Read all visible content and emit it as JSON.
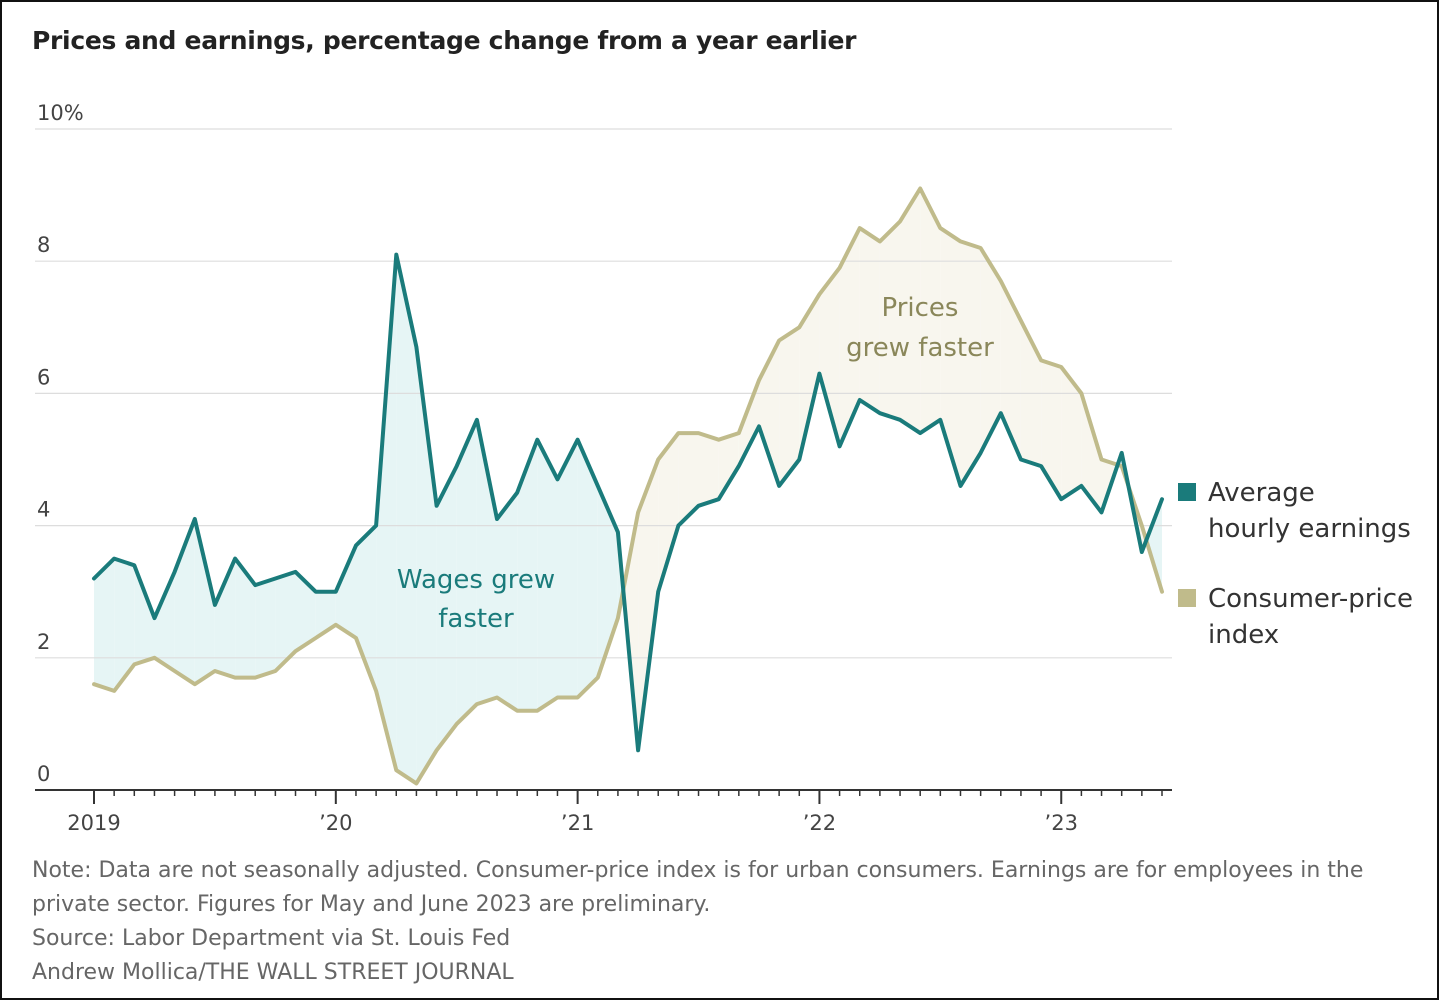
{
  "title": "Prices and earnings, percentage change from a year earlier",
  "colors": {
    "earnings": "#1a7b7b",
    "cpi": "#c0bb8b",
    "wage_fill": "#e6f5f5",
    "price_fill": "#f8f6ee",
    "grid": "#dddddd",
    "axis": "#333333"
  },
  "annotations": {
    "wages": [
      "Wages grew",
      "faster"
    ],
    "prices": [
      "Prices",
      "grew faster"
    ]
  },
  "legend": {
    "earnings": [
      "Average",
      "hourly earnings"
    ],
    "cpi": [
      "Consumer-price",
      "index"
    ]
  },
  "footnotes": {
    "note_line1": "Note: Data are not seasonally adjusted. Consumer-price index is for urban consumers. Earnings are for employees in the",
    "note_line2": "private sector. Figures for May and June 2023 are preliminary.",
    "source": "Source: Labor Department via St. Louis Fed",
    "credit": "Andrew Mollica/THE WALL STREET JOURNAL"
  },
  "chart_data": {
    "type": "line",
    "title": "Prices and earnings, percentage change from a year earlier",
    "x_start": "2019-01",
    "x_end": "2023-06",
    "x_ticks": [
      {
        "date": "2019-01",
        "label": "2019"
      },
      {
        "date": "2020-01",
        "label": "’20"
      },
      {
        "date": "2021-01",
        "label": "’21"
      },
      {
        "date": "2022-01",
        "label": "’22"
      },
      {
        "date": "2023-01",
        "label": "’23"
      }
    ],
    "y_ticks": [
      {
        "value": 0,
        "label": "0"
      },
      {
        "value": 2,
        "label": "2"
      },
      {
        "value": 4,
        "label": "4"
      },
      {
        "value": 6,
        "label": "6"
      },
      {
        "value": 8,
        "label": "8"
      },
      {
        "value": 10,
        "label": "10%"
      }
    ],
    "ylim": [
      0,
      10
    ],
    "grid": true,
    "legend_position": "right",
    "series": [
      {
        "name": "Average hourly earnings",
        "values": [
          3.2,
          3.5,
          3.4,
          2.6,
          3.3,
          4.1,
          2.8,
          3.5,
          3.1,
          3.2,
          3.3,
          3.0,
          3.0,
          3.7,
          4.0,
          8.1,
          6.7,
          4.3,
          4.9,
          5.6,
          4.1,
          4.5,
          5.3,
          4.7,
          5.3,
          4.6,
          3.9,
          0.6,
          3.0,
          4.0,
          4.3,
          4.4,
          4.9,
          5.5,
          4.6,
          5.0,
          6.3,
          5.2,
          5.9,
          5.7,
          5.6,
          5.4,
          5.6,
          4.6,
          5.1,
          5.7,
          5.0,
          4.9,
          4.4,
          4.6,
          4.2,
          5.1,
          3.6,
          4.4
        ]
      },
      {
        "name": "Consumer-price index",
        "values": [
          1.6,
          1.5,
          1.9,
          2.0,
          1.8,
          1.6,
          1.8,
          1.7,
          1.7,
          1.8,
          2.1,
          2.3,
          2.5,
          2.3,
          1.5,
          0.3,
          0.1,
          0.6,
          1.0,
          1.3,
          1.4,
          1.2,
          1.2,
          1.4,
          1.4,
          1.7,
          2.6,
          4.2,
          5.0,
          5.4,
          5.4,
          5.3,
          5.4,
          6.2,
          6.8,
          7.0,
          7.5,
          7.9,
          8.5,
          8.3,
          8.6,
          9.1,
          8.5,
          8.3,
          8.2,
          7.7,
          7.1,
          6.5,
          6.4,
          6.0,
          5.0,
          4.9,
          4.0,
          3.0
        ]
      }
    ]
  }
}
